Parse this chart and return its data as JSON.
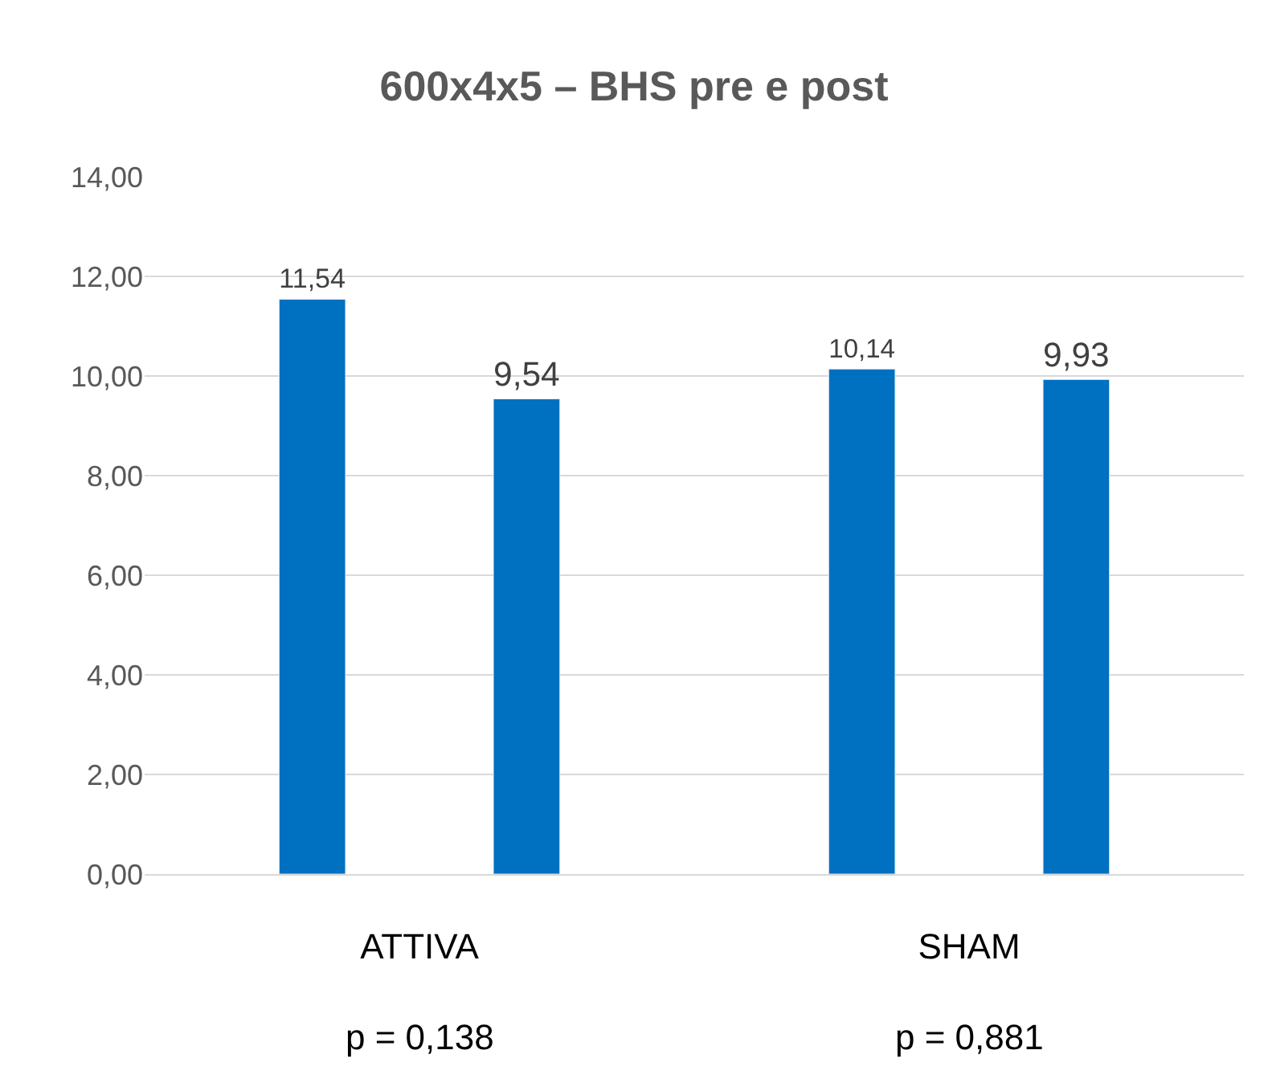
{
  "chart_data": {
    "type": "bar",
    "title": "600x4x5 – BHS pre e post",
    "categories": [
      "ATTIVA",
      "SHAM"
    ],
    "series": [
      {
        "color": "#0070c0",
        "values": [
          11.54,
          10.14
        ],
        "value_labels": [
          "11,54",
          "10,14"
        ]
      },
      {
        "color": "#0070c0",
        "values": [
          9.54,
          9.93
        ],
        "value_labels": [
          "9,54",
          "9,93"
        ]
      }
    ],
    "ylim": [
      0,
      14
    ],
    "yticks": [
      {
        "value": 0,
        "label": "0,00"
      },
      {
        "value": 2,
        "label": "2,00"
      },
      {
        "value": 4,
        "label": "4,00"
      },
      {
        "value": 6,
        "label": "6,00"
      },
      {
        "value": 8,
        "label": "8,00"
      },
      {
        "value": 10,
        "label": "10,00"
      },
      {
        "value": 12,
        "label": "12,00"
      },
      {
        "value": 14,
        "label": "14,00"
      }
    ],
    "grid": "y",
    "annotations": [
      "p = 0,138",
      "p = 0,881"
    ]
  }
}
